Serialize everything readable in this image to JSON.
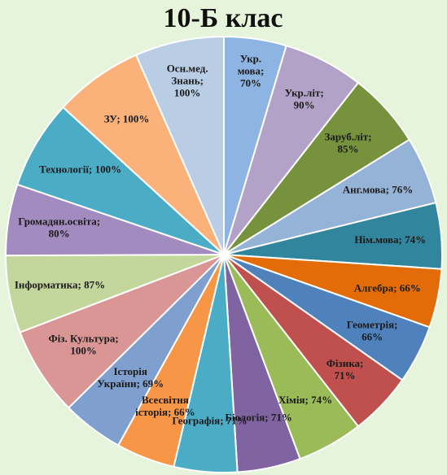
{
  "chart_data": {
    "type": "pie",
    "title": "10-Б клас",
    "slices": [
      {
        "label": "Укр. мова; 70%",
        "value": 70,
        "color": "#8db4e2"
      },
      {
        "label": "Укр.літ; 90%",
        "value": 90,
        "color": "#b3a2c7"
      },
      {
        "label": "Заруб.літ; 85%",
        "value": 85,
        "color": "#76923c"
      },
      {
        "label": "Анг.мова; 76%",
        "value": 76,
        "color": "#95b3d7"
      },
      {
        "label": "Нім.мова; 74%",
        "value": 74,
        "color": "#31859c"
      },
      {
        "label": "Алгебра; 66%",
        "value": 66,
        "color": "#e36c09"
      },
      {
        "label": "Геометрія; 66%",
        "value": 66,
        "color": "#4f81bd"
      },
      {
        "label": "Фізика; 71%",
        "value": 71,
        "color": "#c0504d"
      },
      {
        "label": "Хімія; 74%",
        "value": 74,
        "color": "#9bbb59"
      },
      {
        "label": "Біологія; 71%",
        "value": 71,
        "color": "#8064a2"
      },
      {
        "label": "Географія; 71%",
        "value": 71,
        "color": "#4bacc6"
      },
      {
        "label": "Всесвітня історія; 66%",
        "value": 66,
        "color": "#f79646"
      },
      {
        "label": "Історія України; 69%",
        "value": 69,
        "color": "#7f9fcf"
      },
      {
        "label": "Фіз. Культура; 100%",
        "value": 100,
        "color": "#d99694"
      },
      {
        "label": "Інформатика; 87%",
        "value": 87,
        "color": "#c3d69b"
      },
      {
        "label": "Громадян.освіта; 80%",
        "value": 80,
        "color": "#a18bbf"
      },
      {
        "label": "Технології; 100%",
        "value": 100,
        "color": "#4bacc6"
      },
      {
        "label": "ЗУ; 100%",
        "value": 100,
        "color": "#fab17a"
      },
      {
        "label": "Осн.мед. Знань; 100%",
        "value": 100,
        "color": "#b9cde5"
      }
    ]
  }
}
